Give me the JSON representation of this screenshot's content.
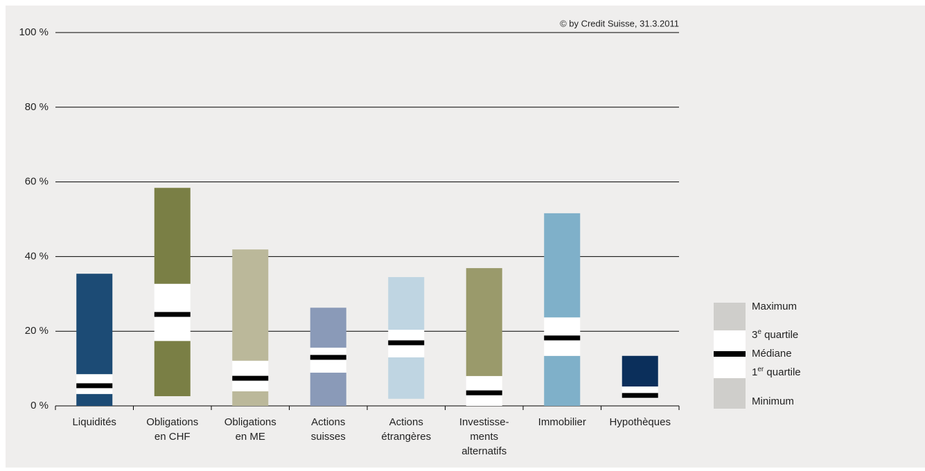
{
  "chart_data": {
    "type": "box",
    "source": "© by Credit Suisse, 31.3.2011",
    "categories": [
      [
        "Liquidités"
      ],
      [
        "Obligations",
        "en CHF"
      ],
      [
        "Obligations",
        "en ME"
      ],
      [
        "Actions",
        "suisses"
      ],
      [
        "Actions",
        "étrangères"
      ],
      [
        "Investisse-",
        "ments",
        "alternatifs"
      ],
      [
        "Immobilier"
      ],
      [
        "Hypothèques"
      ]
    ],
    "boxes": [
      {
        "min": 0,
        "q1": 3.2,
        "median": 5.4,
        "q3": 8.5,
        "max": 35.4,
        "color": "#1c4b75"
      },
      {
        "min": 2.6,
        "q1": 17.4,
        "median": 24.5,
        "q3": 32.7,
        "max": 58.4,
        "color": "#7a7f45"
      },
      {
        "min": 0,
        "q1": 3.9,
        "median": 7.4,
        "q3": 12.1,
        "max": 41.9,
        "color": "#bbb89a"
      },
      {
        "min": 0,
        "q1": 8.9,
        "median": 13.0,
        "q3": 15.6,
        "max": 26.3,
        "color": "#8a9ab8"
      },
      {
        "min": 1.9,
        "q1": 13.0,
        "median": 16.9,
        "q3": 20.4,
        "max": 34.5,
        "color": "#bfd5e2"
      },
      {
        "min": 0,
        "q1": 0,
        "median": 3.5,
        "q3": 8.0,
        "max": 36.9,
        "color": "#9a9a6b"
      },
      {
        "min": 0,
        "q1": 13.4,
        "median": 18.2,
        "q3": 23.7,
        "max": 51.6,
        "color": "#7fb0c9"
      },
      {
        "min": 1.9,
        "q1": 1.9,
        "median": 2.8,
        "q3": 5.2,
        "max": 13.4,
        "color": "#0b2f5b"
      }
    ],
    "ylim": [
      0,
      100
    ],
    "yticks": [
      {
        "value": 0,
        "label": "0 %"
      },
      {
        "value": 20,
        "label": "20 %"
      },
      {
        "value": 40,
        "label": "40 %"
      },
      {
        "value": 60,
        "label": "60 %"
      },
      {
        "value": 80,
        "label": "80 %"
      },
      {
        "value": 100,
        "label": "100 %"
      }
    ],
    "grid": true,
    "legend": [
      {
        "label": "Maximum"
      },
      {
        "label": "3",
        "sup": "e",
        "suffix": " quartile"
      },
      {
        "label": "Médiane"
      },
      {
        "label": "1",
        "sup": "er",
        "suffix": " quartile"
      },
      {
        "label": "Minimum"
      }
    ]
  }
}
